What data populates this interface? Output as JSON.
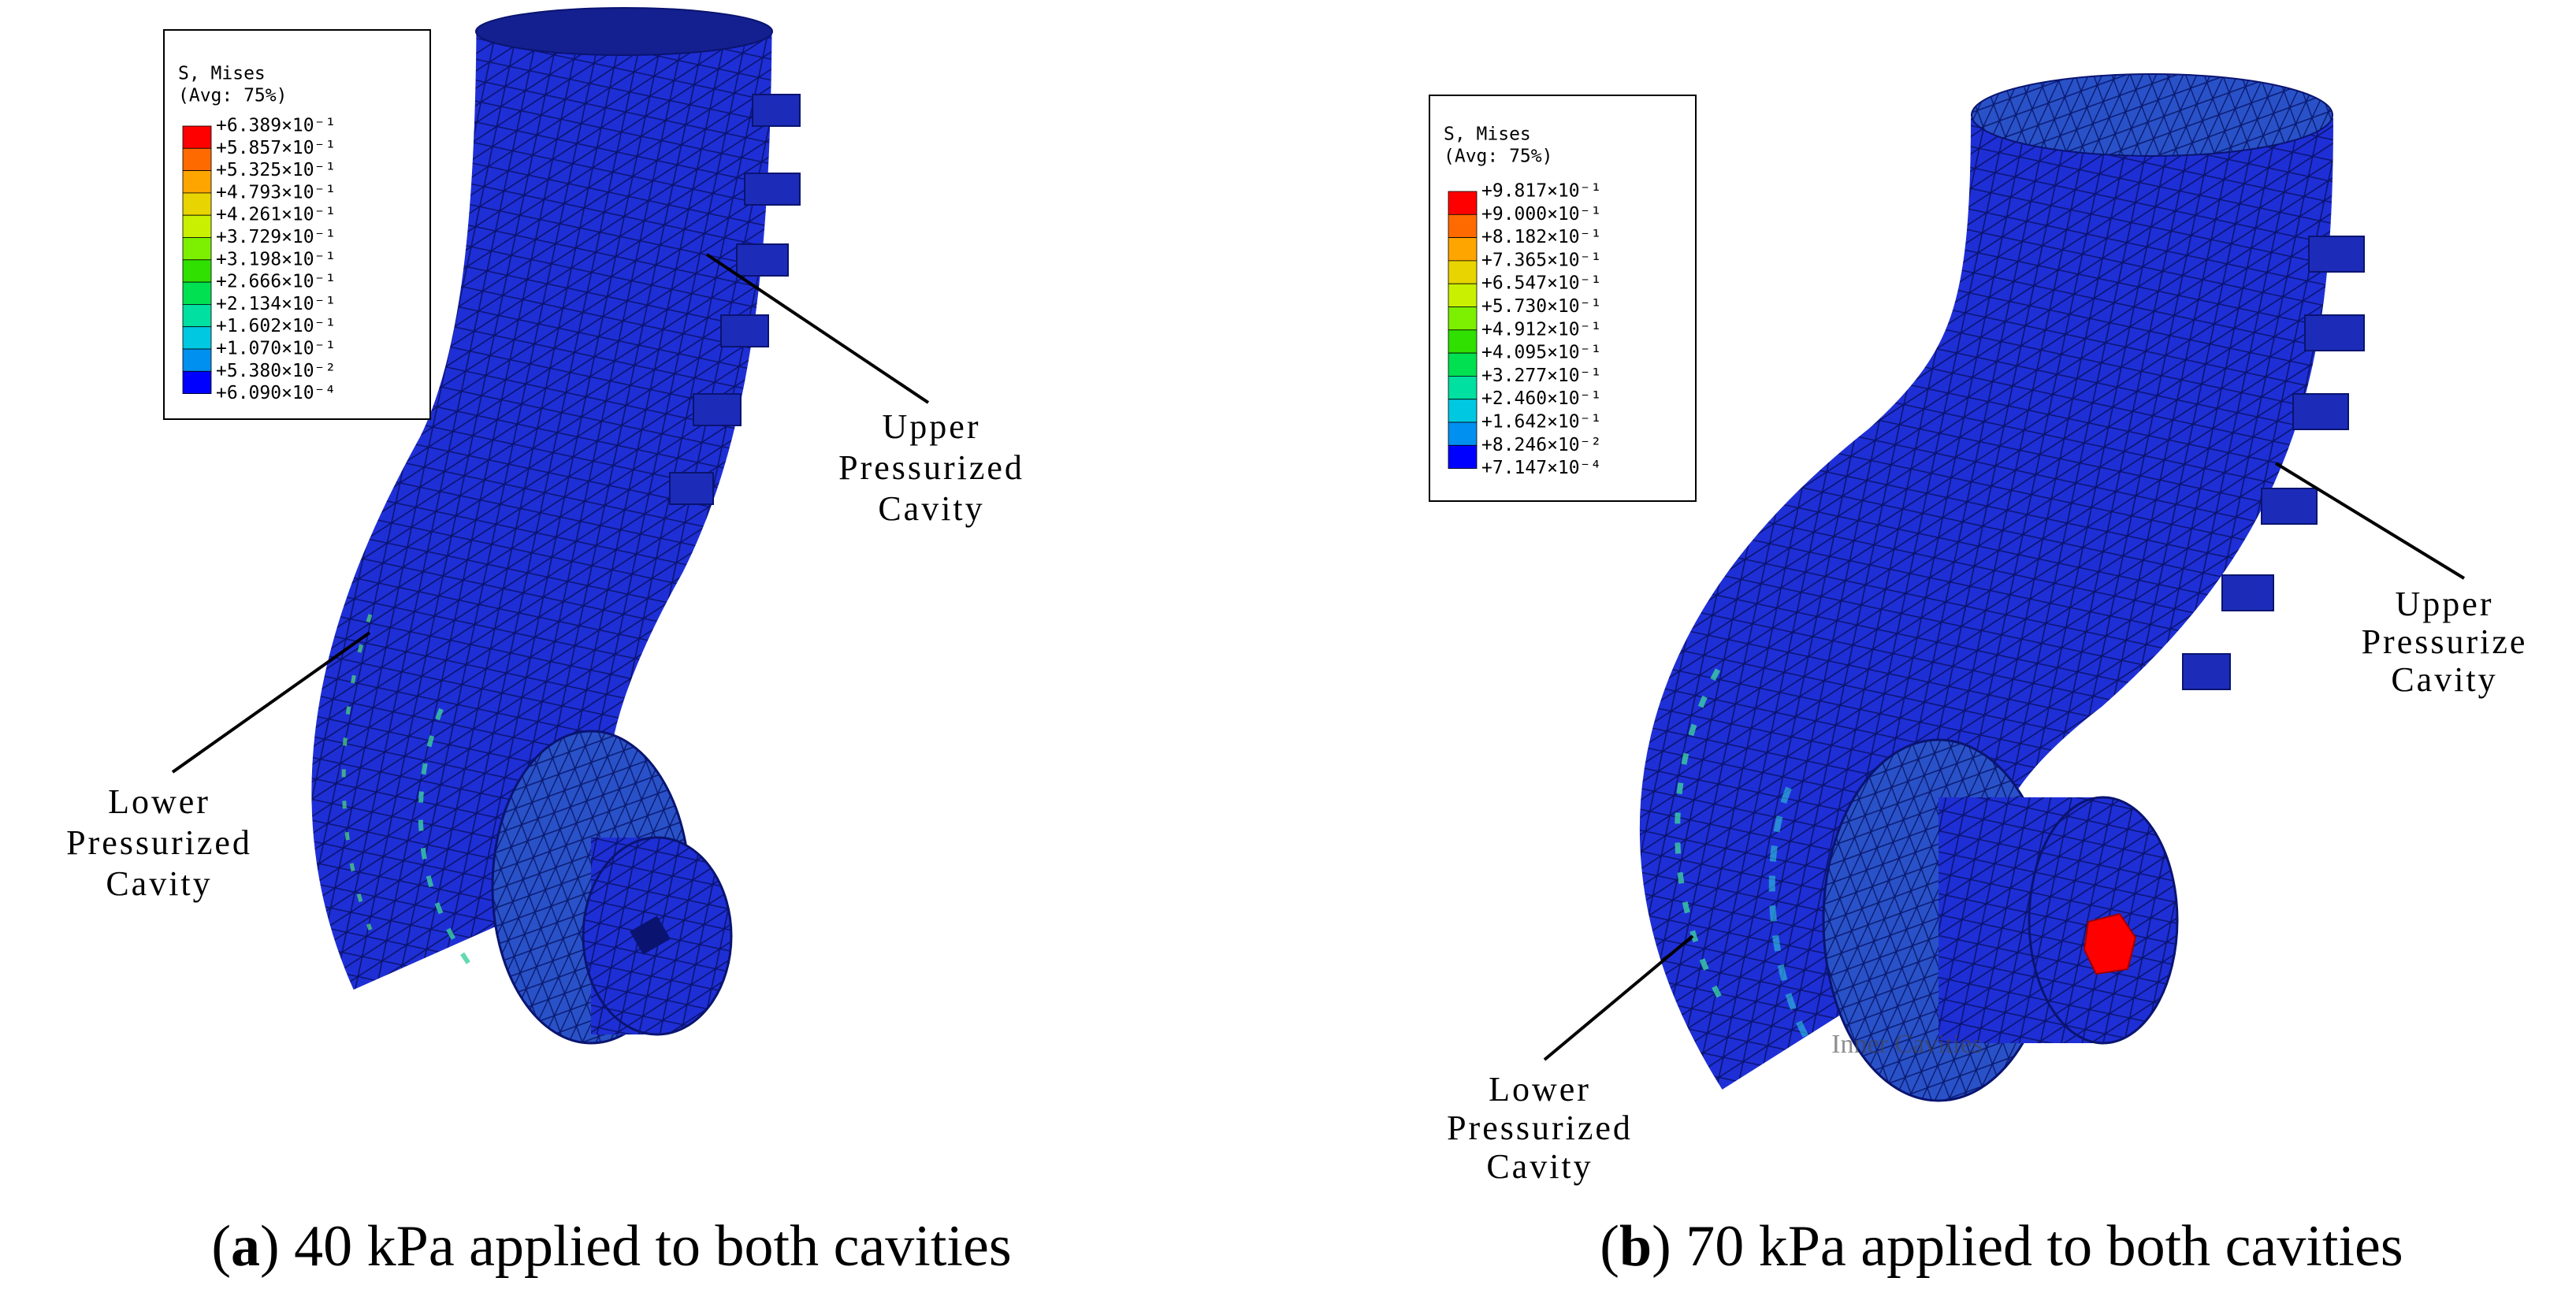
{
  "panels": [
    {
      "legend": {
        "title": "S, Mises",
        "subtitle": "(Avg: 75%)",
        "labels": [
          "+6.389×10⁻¹",
          "+5.857×10⁻¹",
          "+5.325×10⁻¹",
          "+4.793×10⁻¹",
          "+4.261×10⁻¹",
          "+3.729×10⁻¹",
          "+3.198×10⁻¹",
          "+2.666×10⁻¹",
          "+2.134×10⁻¹",
          "+1.602×10⁻¹",
          "+1.070×10⁻¹",
          "+5.380×10⁻²",
          "+6.090×10⁻⁴"
        ],
        "colors": [
          "#ff0000",
          "#ff6a00",
          "#ffa500",
          "#e8d400",
          "#c8f000",
          "#7cf000",
          "#30e000",
          "#00e050",
          "#00e0a0",
          "#00c8e0",
          "#0090f0",
          "#0000ff"
        ]
      },
      "annotations": [
        {
          "lines": [
            "Upper",
            "Pressurized",
            "Cavity"
          ]
        },
        {
          "lines": [
            "Lower",
            "Pressurized",
            "Cavity"
          ]
        }
      ],
      "caption": {
        "prefix": "(",
        "label": "a",
        "text": ") 40 kPa applied to both cavities"
      }
    },
    {
      "legend": {
        "title": "S, Mises",
        "subtitle": "(Avg: 75%)",
        "labels": [
          "+9.817×10⁻¹",
          "+9.000×10⁻¹",
          "+8.182×10⁻¹",
          "+7.365×10⁻¹",
          "+6.547×10⁻¹",
          "+5.730×10⁻¹",
          "+4.912×10⁻¹",
          "+4.095×10⁻¹",
          "+3.277×10⁻¹",
          "+2.460×10⁻¹",
          "+1.642×10⁻¹",
          "+8.246×10⁻²",
          "+7.147×10⁻⁴"
        ],
        "colors": [
          "#ff0000",
          "#ff6a00",
          "#ffa500",
          "#e8d400",
          "#c8f000",
          "#7cf000",
          "#30e000",
          "#00e050",
          "#00e0a0",
          "#00c8e0",
          "#0090f0",
          "#0000ff"
        ]
      },
      "annotations": [
        {
          "lines": [
            "Upper",
            "Pressurize",
            "Cavity"
          ]
        },
        {
          "lines": [
            "Lower",
            "Pressurized",
            "Cavity"
          ]
        },
        {
          "lines": [
            "Inner Cavities"
          ]
        }
      ],
      "caption": {
        "prefix": "(",
        "label": "b",
        "text": ") 70 kPa applied to both cavities"
      }
    }
  ]
}
